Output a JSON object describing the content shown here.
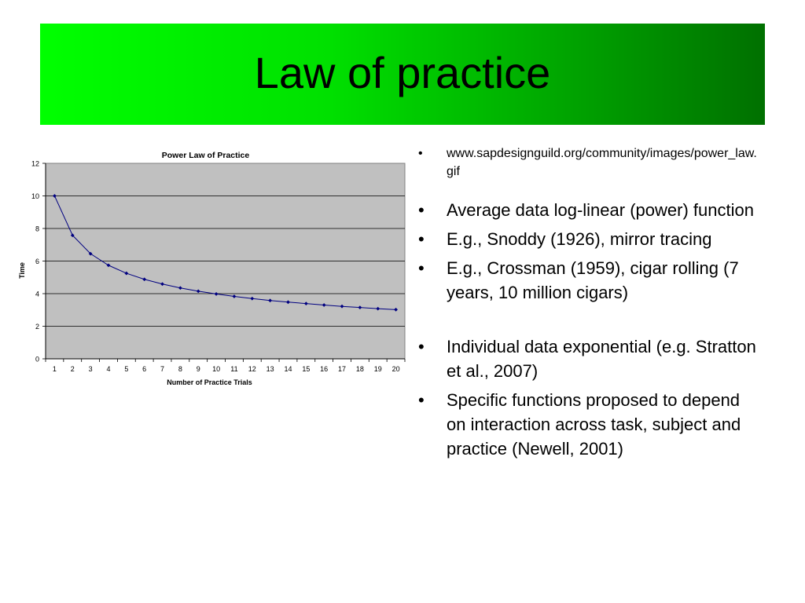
{
  "slide": {
    "title": "Law of practice"
  },
  "bullets": [
    {
      "text": "www.sapdesignguild.org/community/images/power_law.gif",
      "size": "small"
    },
    {
      "text": "Average data log-linear (power) function",
      "size": "large"
    },
    {
      "text": "E.g., Snoddy (1926), mirror tracing",
      "size": "large"
    },
    {
      "text": "E.g., Crossman (1959), cigar rolling (7 years, 10 million cigars)",
      "size": "large"
    },
    {
      "text": "Individual data exponential  (e.g. Stratton et al., 2007)",
      "size": "large"
    },
    {
      "text": "Specific functions proposed to depend on interaction across task, subject and practice (Newell, 2001)",
      "size": "large"
    }
  ],
  "bullet_symbol": "•",
  "chart_data": {
    "type": "line",
    "title": "Power Law of Practice",
    "xlabel": "Number of Practice Trials",
    "ylabel": "Time",
    "x": [
      1,
      2,
      3,
      4,
      5,
      6,
      7,
      8,
      9,
      10,
      11,
      12,
      13,
      14,
      15,
      16,
      17,
      18,
      19,
      20
    ],
    "series": [
      {
        "values": [
          10.0,
          7.58,
          6.45,
          5.74,
          5.25,
          4.88,
          4.59,
          4.35,
          4.15,
          3.98,
          3.83,
          3.7,
          3.58,
          3.48,
          3.39,
          3.3,
          3.22,
          3.15,
          3.08,
          3.02
        ]
      }
    ],
    "yticks": [
      0,
      2,
      4,
      6,
      8,
      10,
      12
    ],
    "ylim": [
      0,
      12
    ],
    "grid": true,
    "plot_background": "#c0c0c0",
    "line_color": "#000080",
    "legend": "none"
  },
  "colors": {
    "title_bar_start": "#00ff00",
    "title_bar_end": "#007000"
  }
}
